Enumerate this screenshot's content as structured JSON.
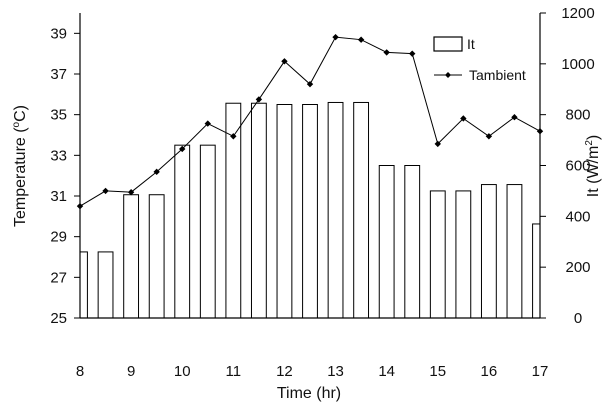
{
  "chart_data": {
    "type": "bar",
    "xlabel": "Time (hr)",
    "xlim": [
      8,
      17
    ],
    "x_ticks": [
      "8",
      "9",
      "10",
      "11",
      "12",
      "13",
      "14",
      "15",
      "16",
      "17"
    ],
    "y_left": {
      "label": "Temperature (°C)",
      "label_main": "Temperature (",
      "label_sup": "o",
      "label_end": "C)",
      "lim": [
        25,
        40
      ],
      "ticks": [
        "25",
        "27",
        "29",
        "31",
        "33",
        "35",
        "37",
        "39"
      ]
    },
    "y_right": {
      "label": "It (W/m²)",
      "label_main": "It (W/m",
      "label_sup": "2",
      "label_end": ")",
      "lim": [
        0,
        1200
      ],
      "ticks": [
        "0",
        "200",
        "400",
        "600",
        "800",
        "1000",
        "1200"
      ]
    },
    "x": [
      8,
      8.5,
      9,
      9.5,
      10,
      10.5,
      11,
      11.5,
      12,
      12.5,
      13,
      13.5,
      14,
      14.5,
      15,
      15.5,
      16,
      16.5,
      17
    ],
    "series": [
      {
        "name": "It",
        "type": "bar",
        "axis": "right",
        "values": [
          260,
          260,
          485,
          485,
          680,
          680,
          845,
          845,
          840,
          840,
          848,
          848,
          600,
          600,
          500,
          500,
          525,
          525,
          370
        ]
      },
      {
        "name": "Tambient",
        "type": "line",
        "axis": "right",
        "marker": "diamond",
        "values": [
          440,
          500,
          495,
          575,
          665,
          765,
          715,
          860,
          1010,
          920,
          1105,
          1095,
          1045,
          1040,
          685,
          785,
          715,
          790,
          735
        ]
      }
    ],
    "legend": {
      "position": "top-right",
      "entries": [
        "It",
        "Tambient"
      ]
    },
    "grid": false
  }
}
